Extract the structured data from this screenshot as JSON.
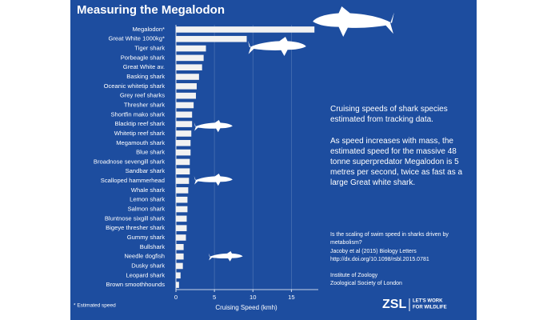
{
  "chart_data": {
    "type": "bar",
    "orientation": "horizontal",
    "title": "Measuring the Megalodon",
    "x_label": "Cruising Speed (kmh)",
    "categories": [
      "Megalodon*",
      "Great White 1000kg*",
      "Tiger shark",
      "Porbeagle shark",
      "Great White av.",
      "Basking shark",
      "Oceanic whitetip shark",
      "Grey reef sharks",
      "Thresher shark",
      "Shortfin mako shark",
      "Blacktip reef shark",
      "Whitetip reef shark",
      "Megamouth shark",
      "Blue shark",
      "Broadnose sevengill shark",
      "Sandbar shark",
      "Scalloped hammerhead",
      "Whale shark",
      "Lemon shark",
      "Salmon shark",
      "Bluntnose sixgill shark",
      "Bigeye thresher shark",
      "Gummy shark",
      "Bullshark",
      "Needle dogfish",
      "Dusky shark",
      "Leopard shark",
      "Brown smoothhounds"
    ],
    "values": [
      18,
      9.2,
      3.9,
      3.6,
      3.4,
      3.0,
      2.7,
      2.6,
      2.3,
      2.1,
      2.1,
      2.0,
      1.9,
      1.9,
      1.8,
      1.8,
      1.7,
      1.6,
      1.5,
      1.5,
      1.4,
      1.4,
      1.3,
      1.0,
      1.0,
      0.9,
      0.6,
      0.4
    ],
    "color": "#f2f2f2",
    "xlim": [
      0,
      18.5
    ],
    "xticks": [
      0,
      5,
      10,
      15
    ],
    "grid": true,
    "footnote": "* Estimated speed",
    "annotations": [
      "Cruising speeds of shark species estimated from tracking data.",
      "As speed increases with mass, the estimated speed for the massive 48 tonne superpredator Megalodon is 5 metres per second, twice as fast as a large Great white shark."
    ],
    "source": [
      "Is the scaling of swim speed in sharks driven by metabolism?",
      "Jacoby et al (2015) Biology Letters",
      "http://dx.doi.org/10.1098/rsbl.2015.0781"
    ],
    "institution": [
      "Institute of Zoology",
      "Zoological Society of London"
    ],
    "logo": {
      "mark": "ZSL",
      "tagline": [
        "LET'S WORK",
        "FOR WILDLIFE"
      ]
    }
  }
}
